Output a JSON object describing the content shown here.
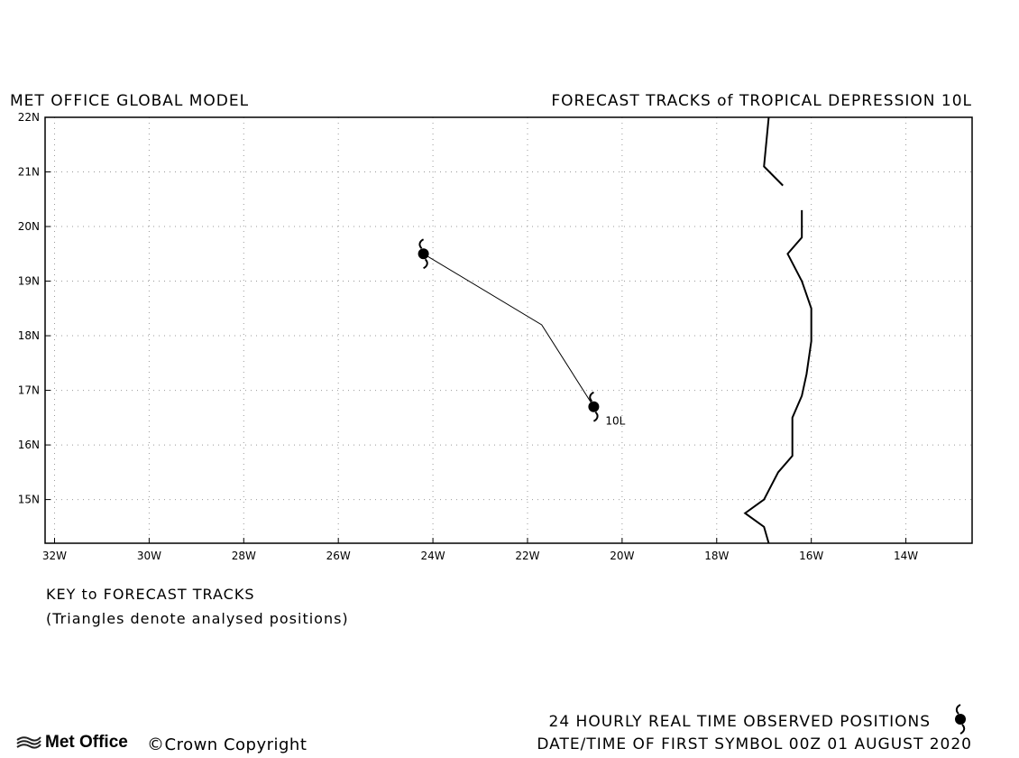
{
  "header": {
    "left": "MET OFFICE GLOBAL MODEL",
    "right": "FORECAST TRACKS of TROPICAL DEPRESSION 10L"
  },
  "map": {
    "lon_range": [
      -32.2,
      -12.6
    ],
    "lat_range": [
      14.2,
      22
    ],
    "x_ticks": [
      "32W",
      "30W",
      "28W",
      "26W",
      "24W",
      "22W",
      "20W",
      "18W",
      "16W",
      "14W"
    ],
    "x_tick_values": [
      -32,
      -30,
      -28,
      -26,
      -24,
      -22,
      -20,
      -18,
      -16,
      -14
    ],
    "y_ticks": [
      "15N",
      "16N",
      "17N",
      "18N",
      "19N",
      "20N",
      "21N",
      "22N"
    ],
    "y_tick_values": [
      15,
      16,
      17,
      18,
      19,
      20,
      21,
      22
    ],
    "grid": "dotted",
    "storm_label": "10L",
    "forecast_track": [
      [
        -20.6,
        16.7
      ],
      [
        -21.7,
        18.2
      ],
      [
        -24.2,
        19.5
      ]
    ],
    "storm_positions": [
      {
        "lon": -20.6,
        "lat": 16.7,
        "label": "10L"
      },
      {
        "lon": -24.2,
        "lat": 19.5
      }
    ],
    "coastline_north": [
      [
        -16.9,
        22.0
      ],
      [
        -17.0,
        21.1
      ],
      [
        -16.6,
        20.75
      ]
    ],
    "coastline_south": [
      [
        -16.2,
        20.3
      ],
      [
        -16.2,
        19.8
      ],
      [
        -16.5,
        19.5
      ],
      [
        -16.2,
        19.0
      ],
      [
        -16.0,
        18.5
      ],
      [
        -16.0,
        17.9
      ],
      [
        -16.1,
        17.3
      ],
      [
        -16.2,
        16.9
      ],
      [
        -16.4,
        16.5
      ],
      [
        -16.4,
        15.8
      ],
      [
        -16.7,
        15.5
      ],
      [
        -17.0,
        15.0
      ],
      [
        -17.4,
        14.75
      ],
      [
        -17.0,
        14.5
      ],
      [
        -16.9,
        14.2
      ]
    ]
  },
  "key": {
    "title": "KEY to FORECAST TRACKS",
    "note": "(Triangles denote analysed positions)"
  },
  "footer": {
    "observed": "24 HOURLY REAL TIME OBSERVED POSITIONS",
    "datetime": "DATE/TIME OF FIRST SYMBOL 00Z 01 AUGUST 2020",
    "logo_text": "Met Office",
    "copyright_symbol": "©",
    "copyright": "Crown Copyright"
  }
}
